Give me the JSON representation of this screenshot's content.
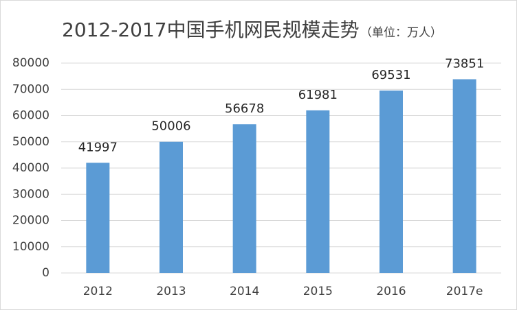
{
  "chart_data": {
    "type": "bar",
    "title": "2012-2017中国手机网民规模走势",
    "subtitle": "（单位：万人）",
    "categories": [
      "2012",
      "2013",
      "2014",
      "2015",
      "2016",
      "2017e"
    ],
    "values": [
      41997,
      50006,
      56678,
      61981,
      69531,
      73851
    ],
    "color": "#5b9bd5",
    "ylim": [
      0,
      80000
    ],
    "yticks": [
      0,
      10000,
      20000,
      30000,
      40000,
      50000,
      60000,
      70000,
      80000
    ],
    "grid": true,
    "data_labels": true
  }
}
